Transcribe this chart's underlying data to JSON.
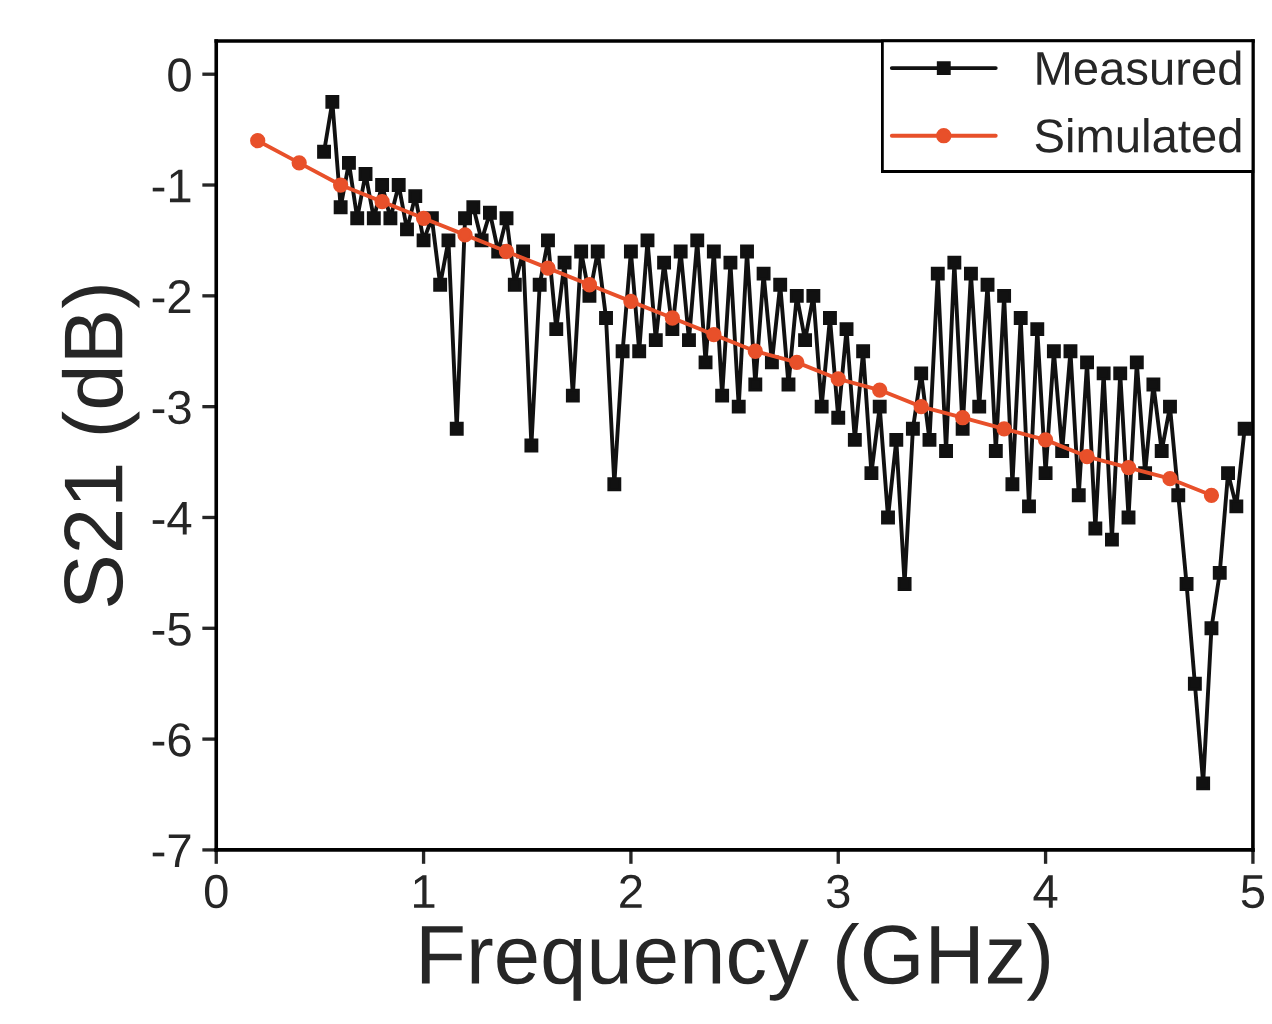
{
  "chart_data": {
    "type": "line",
    "xlabel": "Frequency (GHz)",
    "ylabel": "S21 (dB)",
    "xlim": [
      0,
      5
    ],
    "xticks": [
      0,
      1,
      2,
      3,
      4,
      5
    ],
    "ylim": [
      -7,
      0.3
    ],
    "yticks": [
      -7,
      -6,
      -5,
      -4,
      -3,
      -2,
      -1,
      0
    ],
    "grid": false,
    "legend": "top right",
    "series": [
      {
        "name": "Measured",
        "color": "#111111",
        "marker": "square",
        "line_style": "solid",
        "x": [
          0.52,
          0.56,
          0.6,
          0.64,
          0.68,
          0.72,
          0.76,
          0.8,
          0.84,
          0.88,
          0.92,
          0.96,
          1.0,
          1.04,
          1.08,
          1.12,
          1.16,
          1.2,
          1.24,
          1.28,
          1.32,
          1.36,
          1.4,
          1.44,
          1.48,
          1.52,
          1.56,
          1.6,
          1.64,
          1.68,
          1.72,
          1.76,
          1.8,
          1.84,
          1.88,
          1.92,
          1.96,
          2.0,
          2.04,
          2.08,
          2.12,
          2.16,
          2.2,
          2.24,
          2.28,
          2.32,
          2.36,
          2.4,
          2.44,
          2.48,
          2.52,
          2.56,
          2.6,
          2.64,
          2.68,
          2.72,
          2.76,
          2.8,
          2.84,
          2.88,
          2.92,
          2.96,
          3.0,
          3.04,
          3.08,
          3.12,
          3.16,
          3.2,
          3.24,
          3.28,
          3.32,
          3.36,
          3.4,
          3.44,
          3.48,
          3.52,
          3.56,
          3.6,
          3.64,
          3.68,
          3.72,
          3.76,
          3.8,
          3.84,
          3.88,
          3.92,
          3.96,
          4.0,
          4.04,
          4.08,
          4.12,
          4.16,
          4.2,
          4.24,
          4.28,
          4.32,
          4.36,
          4.4,
          4.44,
          4.48,
          4.52,
          4.56,
          4.6,
          4.64,
          4.68,
          4.72,
          4.76,
          4.8,
          4.84,
          4.88,
          4.92,
          4.96
        ],
        "values": [
          -0.7,
          -0.25,
          -1.2,
          -0.8,
          -1.3,
          -0.9,
          -1.3,
          -1.0,
          -1.3,
          -1.0,
          -1.4,
          -1.1,
          -1.5,
          -1.3,
          -1.9,
          -1.5,
          -3.2,
          -1.3,
          -1.2,
          -1.5,
          -1.25,
          -1.6,
          -1.3,
          -1.9,
          -1.6,
          -3.35,
          -1.9,
          -1.5,
          -2.3,
          -1.7,
          -2.9,
          -1.6,
          -2.0,
          -1.6,
          -2.2,
          -3.7,
          -2.5,
          -1.6,
          -2.5,
          -1.5,
          -2.4,
          -1.7,
          -2.3,
          -1.6,
          -2.4,
          -1.5,
          -2.6,
          -1.6,
          -2.9,
          -1.7,
          -3.0,
          -1.6,
          -2.8,
          -1.8,
          -2.6,
          -1.9,
          -2.8,
          -2.0,
          -2.4,
          -2.0,
          -3.0,
          -2.2,
          -3.1,
          -2.3,
          -3.3,
          -2.5,
          -3.6,
          -3.0,
          -4.0,
          -3.3,
          -4.6,
          -3.2,
          -2.7,
          -3.3,
          -1.8,
          -3.4,
          -1.7,
          -3.2,
          -1.8,
          -3.0,
          -1.9,
          -3.4,
          -2.0,
          -3.7,
          -2.2,
          -3.9,
          -2.3,
          -3.6,
          -2.5,
          -3.4,
          -2.5,
          -3.8,
          -2.6,
          -4.1,
          -2.7,
          -4.2,
          -2.7,
          -4.0,
          -2.6,
          -3.6,
          -2.8,
          -3.4,
          -3.0,
          -3.8,
          -4.6,
          -5.5,
          -6.4,
          -5.0,
          -4.5,
          -3.6,
          -3.9,
          -3.2
        ]
      },
      {
        "name": "Simulated",
        "color": "#e8502a",
        "marker": "circle",
        "line_style": "solid",
        "x": [
          0.2,
          0.4,
          0.6,
          0.8,
          1.0,
          1.2,
          1.4,
          1.6,
          1.8,
          2.0,
          2.2,
          2.4,
          2.6,
          2.8,
          3.0,
          3.2,
          3.4,
          3.6,
          3.8,
          4.0,
          4.2,
          4.4,
          4.6,
          4.8
        ],
        "values": [
          -0.6,
          -0.8,
          -1.0,
          -1.15,
          -1.3,
          -1.45,
          -1.6,
          -1.75,
          -1.9,
          -2.05,
          -2.2,
          -2.35,
          -2.5,
          -2.6,
          -2.75,
          -2.85,
          -3.0,
          -3.1,
          -3.2,
          -3.3,
          -3.45,
          -3.55,
          -3.65,
          -3.8
        ]
      }
    ]
  }
}
